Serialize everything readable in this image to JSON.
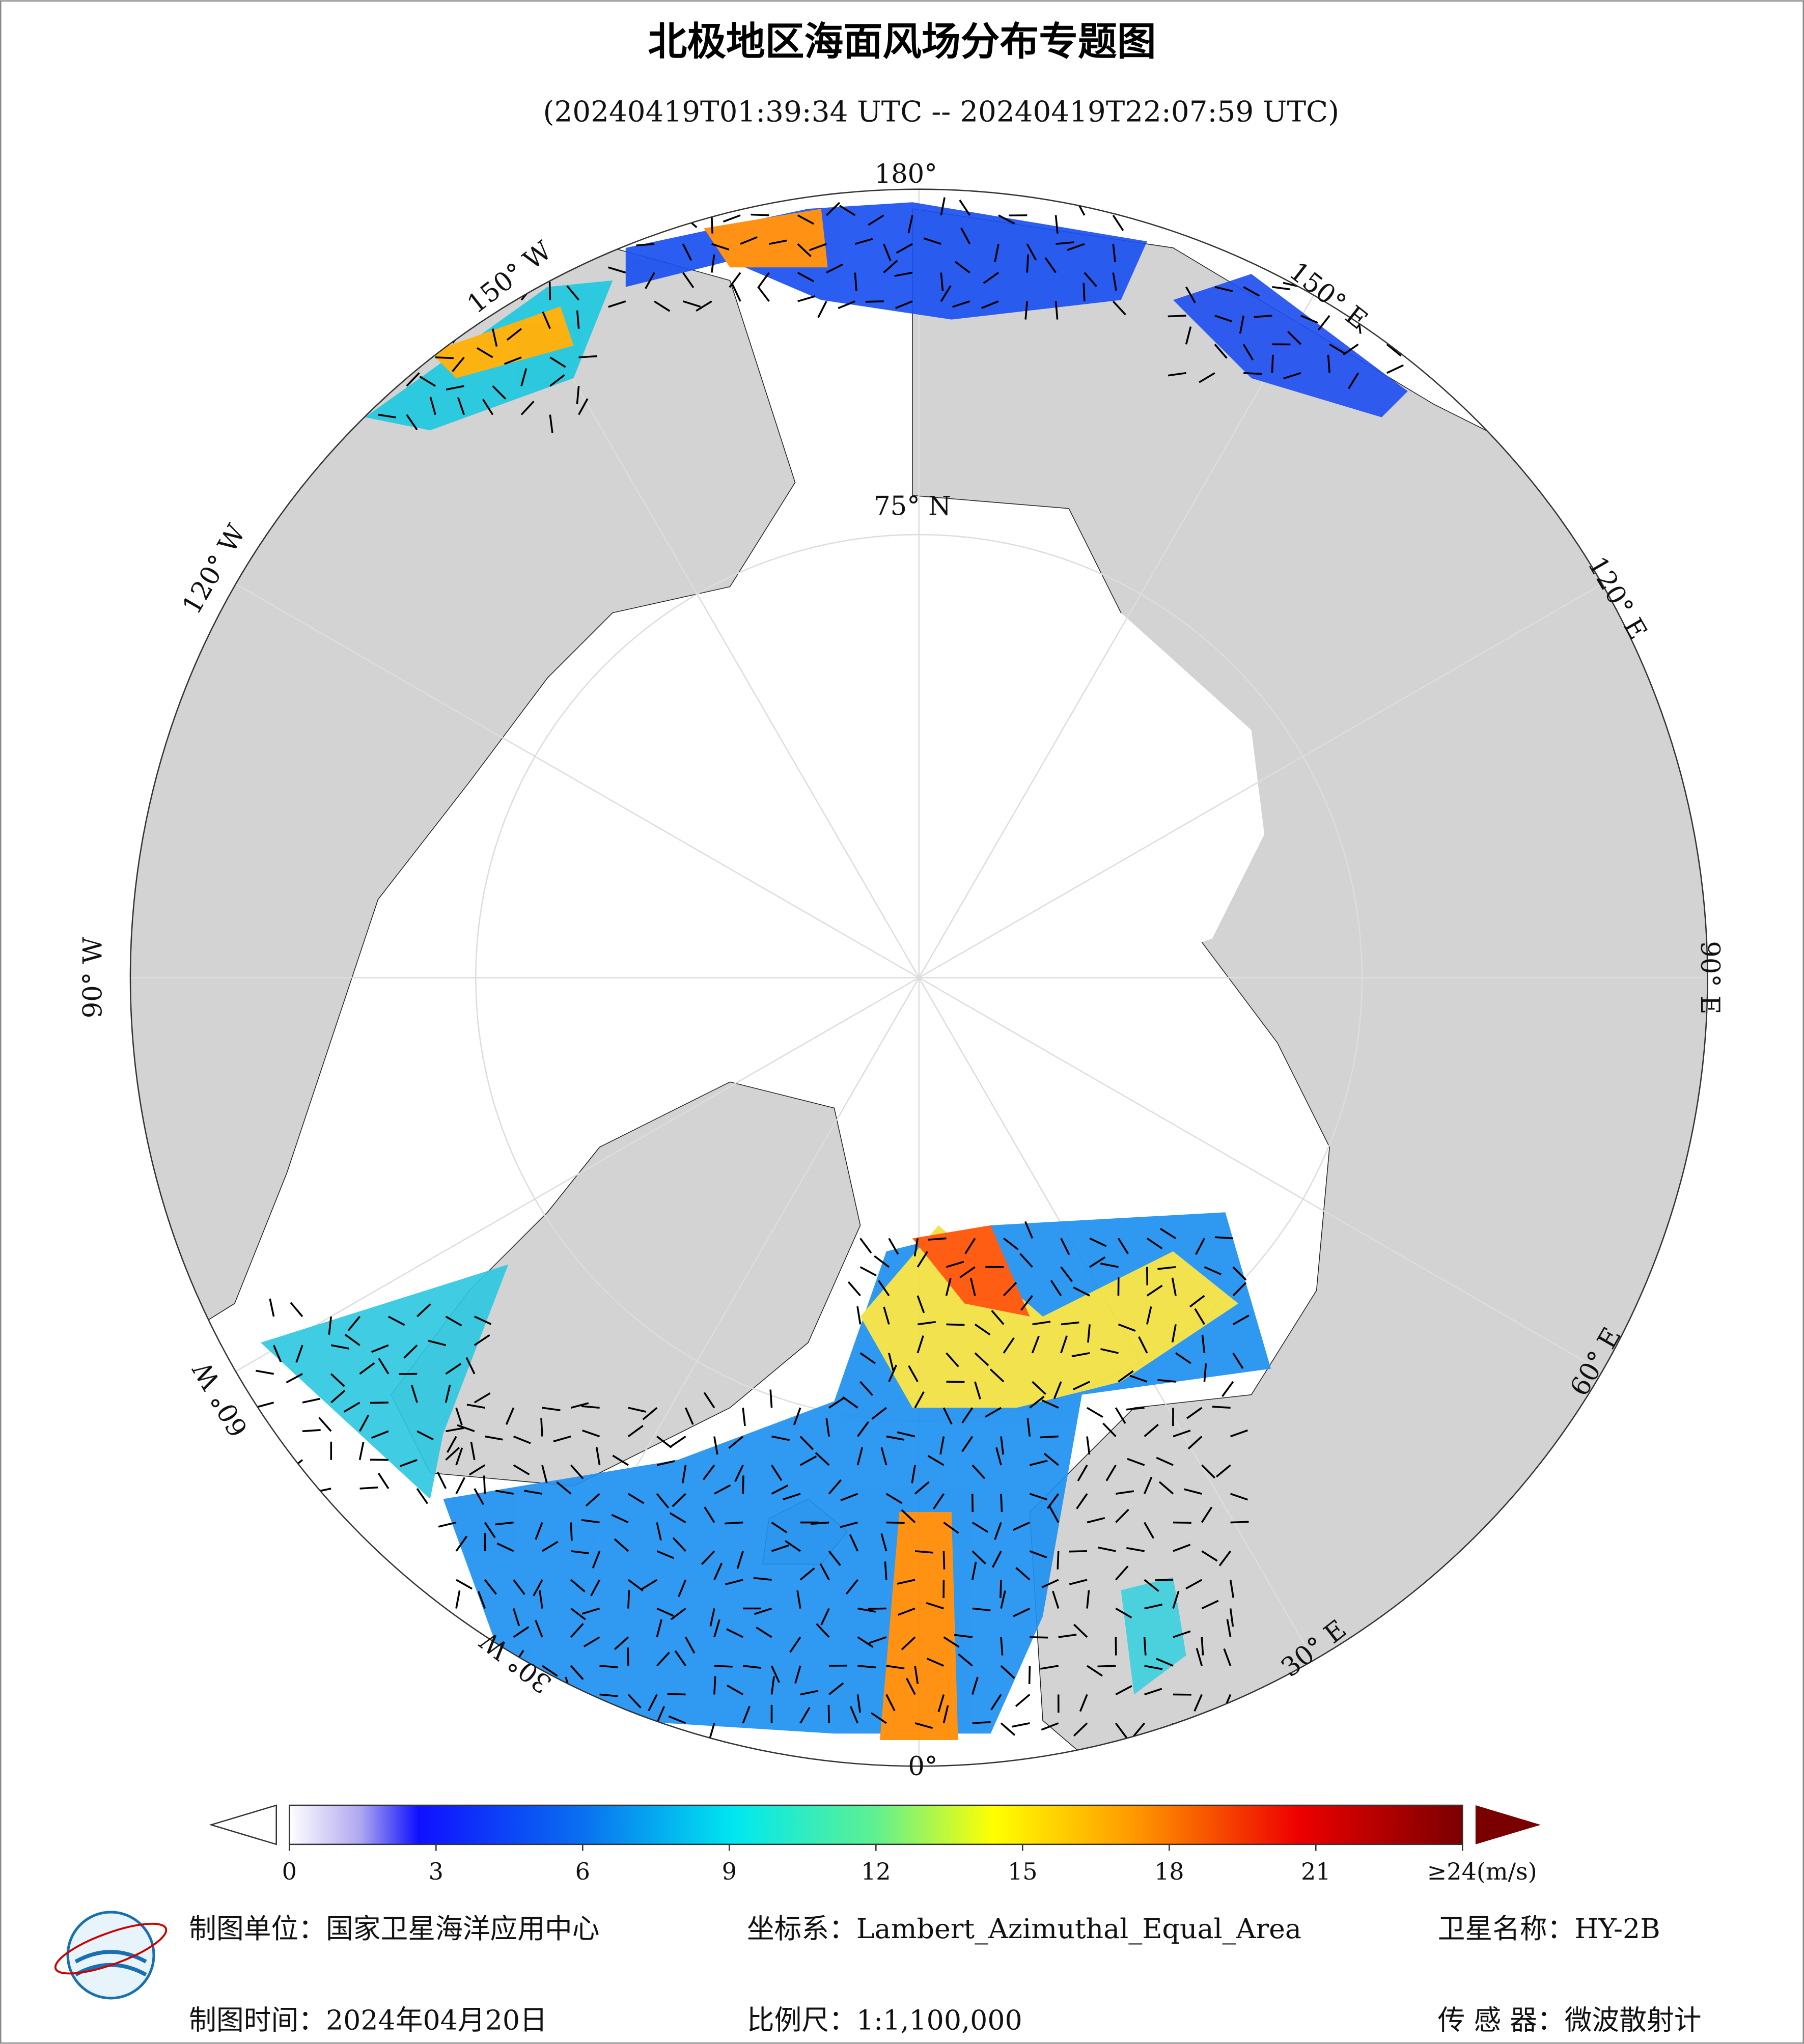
{
  "title": "北极地区海面风场分布专题图",
  "subtitle": "(20240419T01:39:34 UTC -- 20240419T22:07:59 UTC)",
  "graticule_labels": [
    "180°",
    "150° E",
    "120° E",
    "90° E",
    "60° E",
    "30° E",
    "0°",
    "30° W",
    "60° W",
    "90° W",
    "120° W",
    "150° W",
    "75° N"
  ],
  "colorbar": {
    "range": [
      0,
      24
    ],
    "ticks": [
      0,
      3,
      6,
      9,
      12,
      15,
      18,
      21,
      {
        "value": 24,
        "label": "≥24(m/s)"
      }
    ]
  },
  "footer": {
    "unit": "制图单位：国家卫星海洋应用中心",
    "crs": "坐标系：Lambert_Azimuthal_Equal_Area",
    "satellite": "卫星名称：HY-2B",
    "date": "制图时间：2024年04月20日",
    "scale": "比例尺：1:1,100,000",
    "sensor": "传 感 器：微波散射计"
  }
}
